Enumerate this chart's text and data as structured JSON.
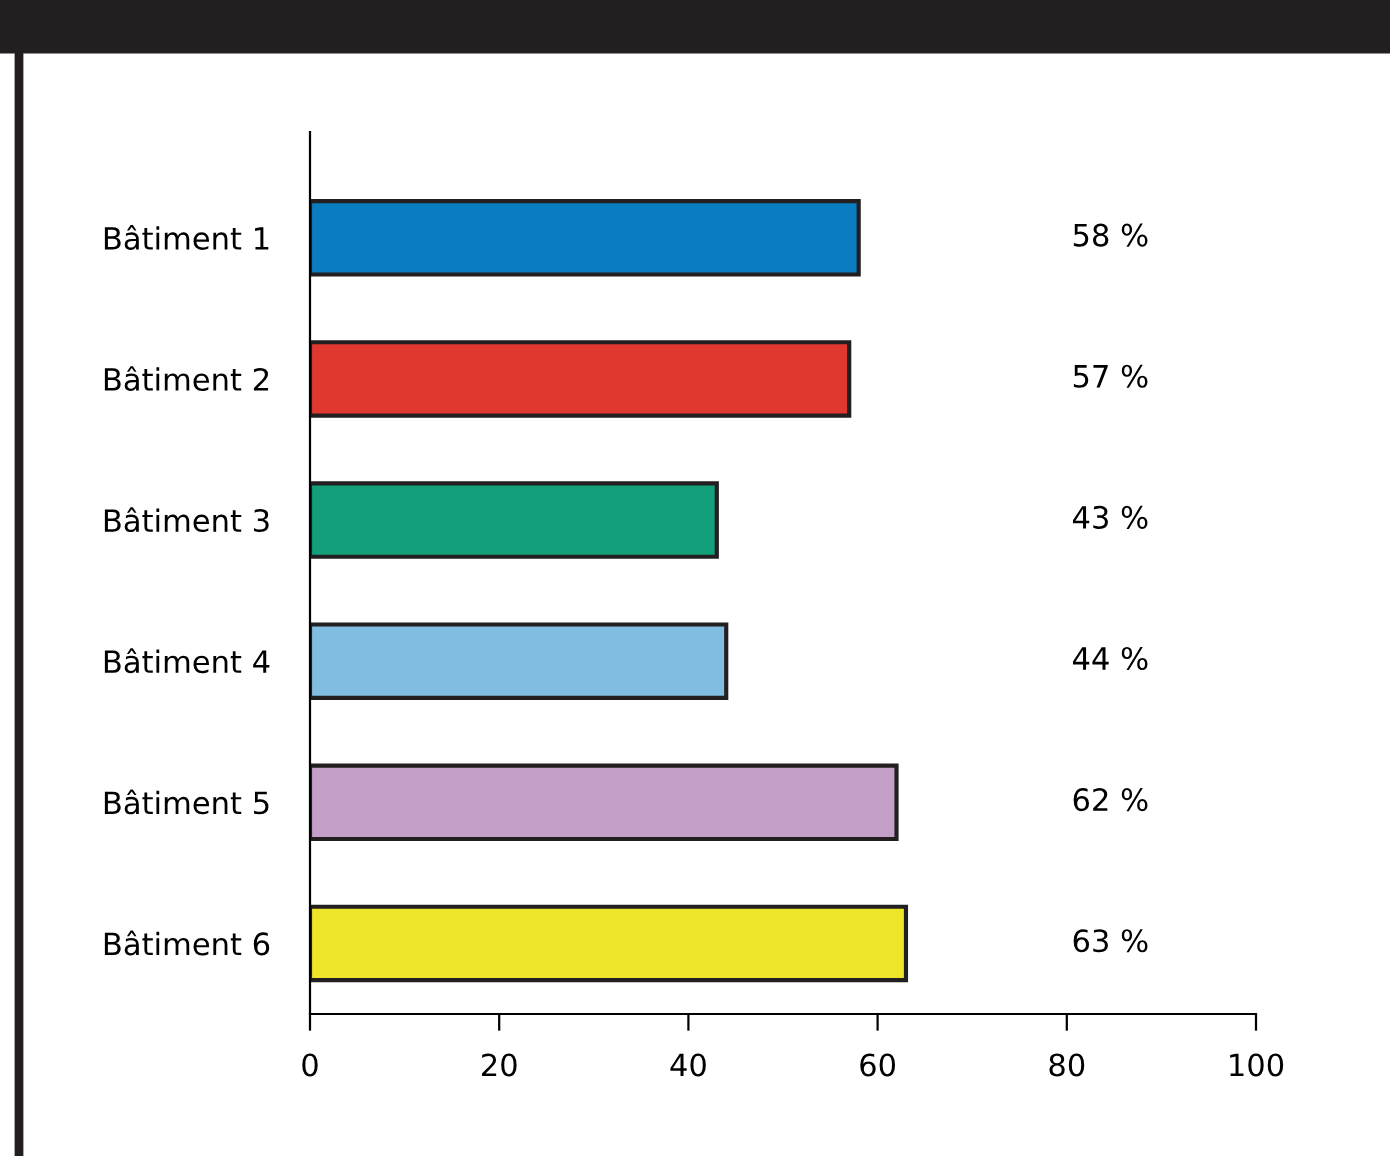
{
  "chart_data": {
    "type": "bar",
    "orientation": "horizontal",
    "categories": [
      "Bâtiment 1",
      "Bâtiment 2",
      "Bâtiment 3",
      "Bâtiment 4",
      "Bâtiment 5",
      "Bâtiment 6"
    ],
    "values": [
      58,
      57,
      43,
      44,
      62,
      63
    ],
    "colors": [
      "#0a7cc0",
      "#e0372e",
      "#11a07a",
      "#80bde0",
      "#c4a0c8",
      "#ede52a"
    ],
    "value_labels": [
      "58 %",
      "57 %",
      "43 %",
      "44 %",
      "62 %",
      "63 %"
    ],
    "xlim": [
      0,
      100
    ],
    "xticks": [
      0,
      20,
      40,
      60,
      80,
      100
    ],
    "grid": false,
    "legend": false
  }
}
